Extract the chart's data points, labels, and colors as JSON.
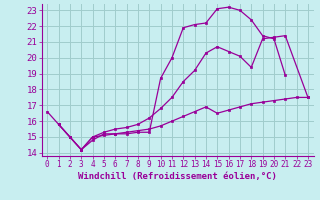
{
  "xlabel": "Windchill (Refroidissement éolien,°C)",
  "bg_color": "#c8eef0",
  "grid_color": "#a0cccc",
  "line_color": "#990099",
  "xlim": [
    -0.5,
    23.5
  ],
  "ylim": [
    13.8,
    23.4
  ],
  "xticks": [
    0,
    1,
    2,
    3,
    4,
    5,
    6,
    7,
    8,
    9,
    10,
    11,
    12,
    13,
    14,
    15,
    16,
    17,
    18,
    19,
    20,
    21,
    22,
    23
  ],
  "yticks": [
    14,
    15,
    16,
    17,
    18,
    19,
    20,
    21,
    22,
    23
  ],
  "line1_x": [
    0,
    1,
    2,
    3,
    4,
    5,
    6,
    7,
    8,
    9,
    10,
    11,
    12,
    13,
    14,
    15,
    16,
    17,
    18,
    19,
    20,
    21
  ],
  "line1_y": [
    16.6,
    15.8,
    15.0,
    14.2,
    14.8,
    15.2,
    15.2,
    15.2,
    15.3,
    15.3,
    18.7,
    20.0,
    21.9,
    22.1,
    22.2,
    23.1,
    23.2,
    23.0,
    22.4,
    21.4,
    21.2,
    18.9
  ],
  "line2_x": [
    1,
    2,
    3,
    4,
    5,
    6,
    7,
    8,
    9,
    10,
    11,
    12,
    13,
    14,
    15,
    16,
    17,
    18,
    19,
    20,
    21,
    23
  ],
  "line2_y": [
    15.8,
    15.0,
    14.2,
    15.0,
    15.3,
    15.5,
    15.6,
    15.8,
    16.2,
    16.8,
    17.5,
    18.5,
    19.2,
    20.3,
    20.7,
    20.4,
    20.1,
    19.4,
    21.2,
    21.3,
    21.4,
    17.5
  ],
  "line3_x": [
    1,
    2,
    3,
    4,
    5,
    6,
    7,
    8,
    9,
    10,
    11,
    12,
    13,
    14,
    15,
    16,
    17,
    18,
    19,
    20,
    21,
    22,
    23
  ],
  "line3_y": [
    15.8,
    15.0,
    14.2,
    15.0,
    15.1,
    15.2,
    15.3,
    15.4,
    15.5,
    15.7,
    16.0,
    16.3,
    16.6,
    16.9,
    16.5,
    16.7,
    16.9,
    17.1,
    17.2,
    17.3,
    17.4,
    17.5,
    17.5
  ],
  "font_size_xlabel": 6.5,
  "font_size_ytick": 6.5,
  "font_size_xtick": 5.5
}
